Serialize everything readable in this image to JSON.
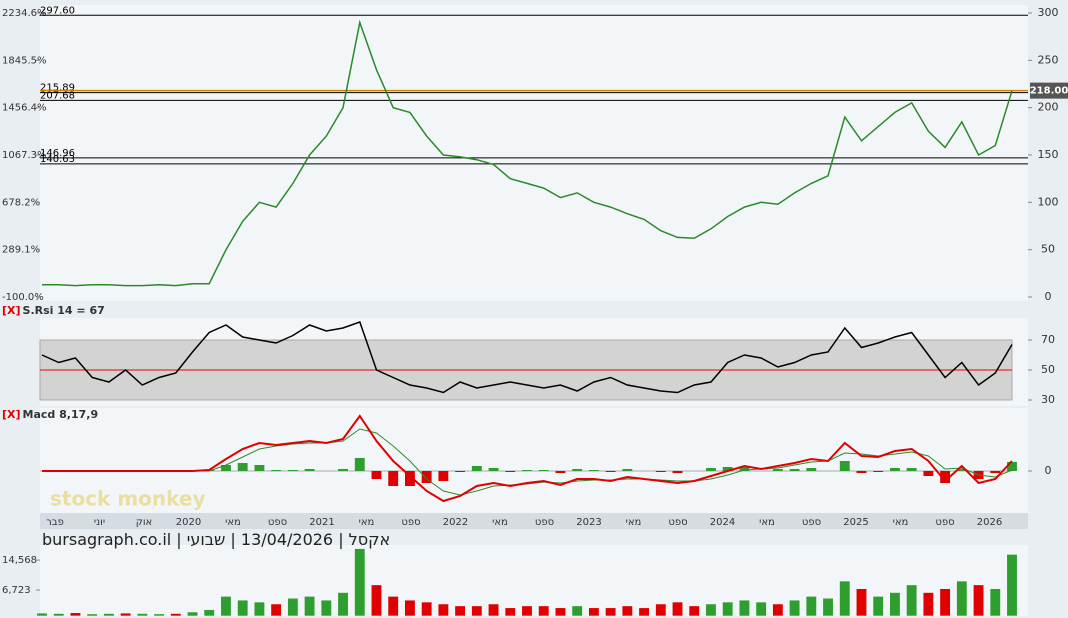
{
  "chart_data": [
    {
      "type": "price",
      "series": [
        {
          "color": "#2a8a2a",
          "values": [
            13,
            13,
            12,
            13,
            13,
            12,
            12,
            13,
            12,
            14,
            14,
            50,
            80,
            100,
            95,
            120,
            150,
            170,
            200,
            290,
            240,
            200,
            195,
            170,
            150,
            148,
            145,
            140,
            125,
            120,
            115,
            105,
            110,
            100,
            95,
            88,
            82,
            70,
            63,
            62,
            72,
            85,
            95,
            100,
            98,
            110,
            120,
            128,
            190,
            165,
            180,
            195,
            205,
            175,
            158,
            185,
            150,
            160,
            218
          ]
        }
      ],
      "ylim": [
        0,
        300
      ],
      "yticks": [
        0,
        50,
        100,
        150,
        200,
        250,
        300
      ],
      "y2lim": [
        -100,
        2234.6
      ],
      "y2ticks": [
        {
          "value": -100,
          "label": "-100.0%"
        },
        {
          "value": 289.1,
          "label": "289.1%"
        },
        {
          "value": 678.2,
          "label": "678.2%"
        },
        {
          "value": 1067.3,
          "label": "1067.3%"
        },
        {
          "value": 1456.4,
          "label": "1456.4%"
        },
        {
          "value": 1845.5,
          "label": "1845.5%"
        },
        {
          "value": 2234.6,
          "label": "2234.6%"
        }
      ],
      "levels": [
        {
          "value": 297.6,
          "label": "297.60"
        },
        {
          "value": 215.89,
          "label": "215.89"
        },
        {
          "value": 207.68,
          "label": "207.68"
        },
        {
          "value": 146.96,
          "label": "146.96"
        },
        {
          "value": 140.63,
          "label": "140.63"
        }
      ],
      "last_price": {
        "value": 218,
        "label": "218.00"
      },
      "x_labels": [
        "פבר",
        "יוני",
        "אוק",
        "2020",
        "מאי",
        "ספט",
        "2021",
        "מאי",
        "ספט",
        "2022",
        "מאי",
        "ספט",
        "2023",
        "מאי",
        "ספט",
        "2024",
        "מאי",
        "ספט",
        "2025",
        "מאי",
        "ספט",
        "2026"
      ]
    },
    {
      "type": "rsi",
      "title_prefix": "[X]",
      "title": "S.Rsi 14 = 67",
      "series": [
        {
          "color": "#000000",
          "values": [
            60,
            55,
            58,
            45,
            42,
            50,
            40,
            45,
            48,
            62,
            75,
            80,
            72,
            70,
            68,
            73,
            80,
            76,
            78,
            82,
            50,
            45,
            40,
            38,
            35,
            42,
            38,
            40,
            42,
            40,
            38,
            40,
            36,
            42,
            45,
            40,
            38,
            36,
            35,
            40,
            42,
            55,
            60,
            58,
            52,
            55,
            60,
            62,
            78,
            65,
            68,
            72,
            75,
            60,
            45,
            55,
            40,
            48,
            67
          ]
        }
      ],
      "ylim": [
        27,
        85
      ],
      "yticks": [
        30,
        50,
        70
      ],
      "band": [
        30,
        70
      ],
      "midline": 50
    },
    {
      "type": "macd",
      "title_prefix": "[X]",
      "title": "Macd 8,17,9",
      "series": [
        {
          "color": "#e00000",
          "values": [
            0,
            0,
            0,
            0,
            0,
            0,
            0,
            0,
            0,
            0,
            1,
            12,
            22,
            28,
            26,
            28,
            30,
            28,
            32,
            55,
            30,
            10,
            -5,
            -20,
            -30,
            -25,
            -15,
            -12,
            -15,
            -12,
            -10,
            -14,
            -8,
            -8,
            -10,
            -6,
            -8,
            -10,
            -12,
            -10,
            -5,
            0,
            5,
            2,
            5,
            8,
            12,
            10,
            28,
            15,
            14,
            20,
            22,
            10,
            -10,
            5,
            -12,
            -8,
            10
          ]
        },
        {
          "color": "#2e8b2e",
          "values": [
            0,
            0,
            0,
            0,
            0,
            0,
            0,
            0,
            0,
            0,
            0,
            6,
            14,
            22,
            25,
            27,
            28,
            28,
            30,
            42,
            38,
            25,
            10,
            -8,
            -20,
            -24,
            -20,
            -15,
            -14,
            -13,
            -11,
            -12,
            -10,
            -9,
            -9,
            -8,
            -8,
            -9,
            -10,
            -10,
            -8,
            -4,
            1,
            2,
            3,
            6,
            9,
            10,
            18,
            17,
            15,
            17,
            19,
            15,
            2,
            3,
            -4,
            -6,
            1
          ]
        },
        {
          "values": [
            0,
            0,
            0,
            0,
            0,
            0,
            0,
            0,
            0,
            0,
            1,
            6,
            8,
            6,
            1,
            1,
            2,
            0,
            2,
            13,
            -8,
            -15,
            -15,
            -12,
            -10,
            -1,
            5,
            3,
            -1,
            1,
            1,
            -2,
            2,
            1,
            -1,
            2,
            0,
            -1,
            -2,
            0,
            3,
            4,
            4,
            0,
            2,
            2,
            3,
            0,
            10,
            -2,
            -1,
            3,
            3,
            -5,
            -12,
            2,
            -8,
            -2,
            9
          ]
        }
      ],
      "ylim": [
        -39,
        61
      ],
      "yticks": [
        0
      ]
    },
    {
      "type": "volume",
      "values": [
        600,
        500,
        700,
        400,
        500,
        600,
        500,
        400,
        500,
        900,
        1500,
        5000,
        4000,
        3500,
        3000,
        4500,
        5000,
        4000,
        6000,
        17500,
        8000,
        5000,
        4000,
        3500,
        3000,
        2500,
        2500,
        3000,
        2000,
        2500,
        2500,
        2000,
        2500,
        2000,
        2000,
        2500,
        2000,
        3000,
        3500,
        2500,
        3000,
        3500,
        4000,
        3500,
        3000,
        4000,
        5000,
        4500,
        9000,
        7000,
        5000,
        6000,
        8000,
        6000,
        7000,
        9000,
        8000,
        7000,
        16000
      ],
      "ylim": [
        0,
        18000
      ],
      "yticks": [
        {
          "value": 6723,
          "label": "6,723"
        },
        {
          "value": 14568,
          "label": "14,568"
        }
      ]
    }
  ],
  "footer": "bursagraph.co.il | אקסל | 13/04/2026 | שבועי",
  "watermark": "stock monkey"
}
